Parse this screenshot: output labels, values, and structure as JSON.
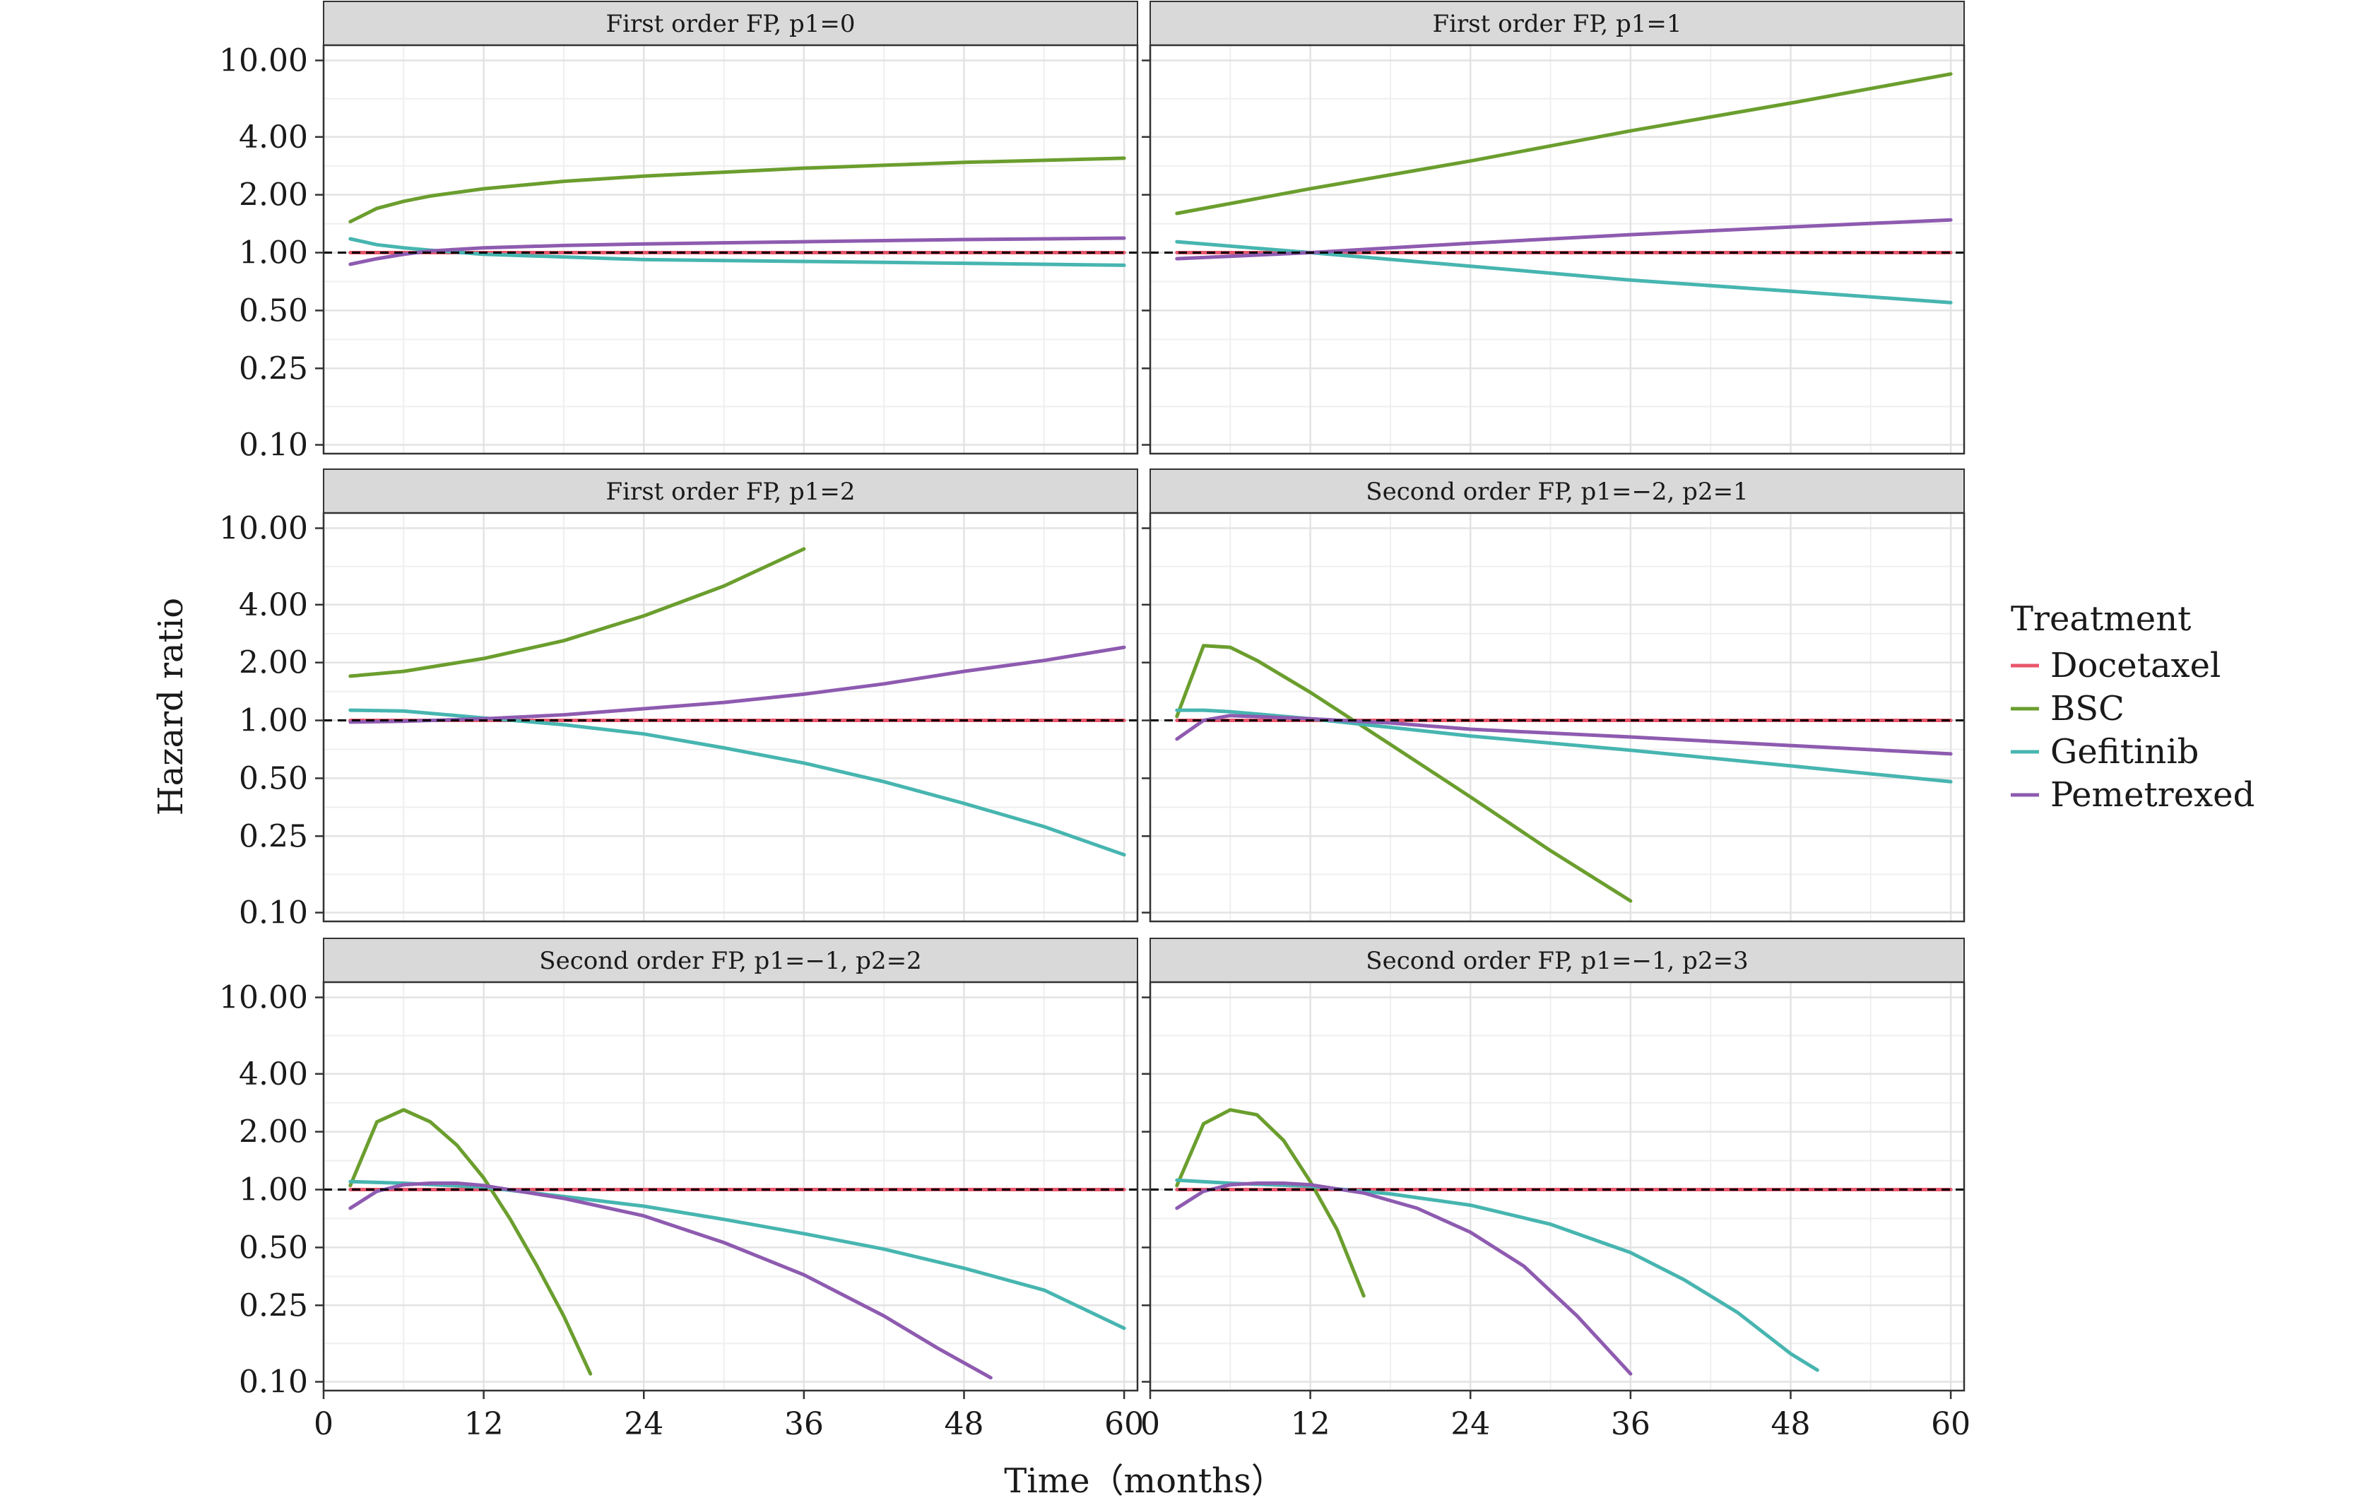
{
  "chart_data": {
    "type": "line",
    "layout": "facet-grid-3x2",
    "ylabel": "Hazard ratio",
    "xlabel": "Time（months）",
    "x_ticks": [
      0,
      12,
      24,
      36,
      48,
      60
    ],
    "xlim": [
      0,
      61
    ],
    "y_scale": "log",
    "y_ticks": [
      0.1,
      0.25,
      0.5,
      1.0,
      2.0,
      4.0,
      10.0
    ],
    "y_tick_labels": [
      "0.10",
      "0.25",
      "0.50",
      "1.00",
      "2.00",
      "4.00",
      "10.00"
    ],
    "ylim": [
      0.09,
      12
    ],
    "reference_line": {
      "y": 1,
      "style": "dashed",
      "color": "#000000"
    },
    "grid": true,
    "legend": {
      "title": "Treatment",
      "position": "right",
      "entries": [
        {
          "name": "Docetaxel",
          "color": "#E8566B"
        },
        {
          "name": "BSC",
          "color": "#6B9E2E"
        },
        {
          "name": "Gefitinib",
          "color": "#47B5B0"
        },
        {
          "name": "Pemetrexed",
          "color": "#8E5BB0"
        }
      ]
    },
    "panels": [
      {
        "title": "First order FP, p1=0",
        "series": [
          {
            "name": "Docetaxel",
            "x": [
              2,
              60
            ],
            "y": [
              1,
              1
            ]
          },
          {
            "name": "BSC",
            "x": [
              2,
              4,
              6,
              8,
              12,
              18,
              24,
              36,
              48,
              60
            ],
            "y": [
              1.45,
              1.7,
              1.85,
              1.97,
              2.15,
              2.35,
              2.5,
              2.75,
              2.95,
              3.1
            ]
          },
          {
            "name": "Gefitinib",
            "x": [
              2,
              4,
              6,
              8,
              12,
              18,
              24,
              36,
              48,
              60
            ],
            "y": [
              1.18,
              1.1,
              1.06,
              1.03,
              0.98,
              0.95,
              0.92,
              0.9,
              0.88,
              0.86
            ]
          },
          {
            "name": "Pemetrexed",
            "x": [
              2,
              4,
              6,
              8,
              12,
              18,
              24,
              36,
              48,
              60
            ],
            "y": [
              0.87,
              0.93,
              0.98,
              1.02,
              1.06,
              1.09,
              1.11,
              1.14,
              1.17,
              1.19
            ]
          }
        ]
      },
      {
        "title": "First order FP, p1=1",
        "series": [
          {
            "name": "Docetaxel",
            "x": [
              2,
              60
            ],
            "y": [
              1,
              1
            ]
          },
          {
            "name": "BSC",
            "x": [
              2,
              12,
              24,
              36,
              48,
              60
            ],
            "y": [
              1.6,
              2.15,
              3.0,
              4.3,
              6.0,
              8.5
            ]
          },
          {
            "name": "Gefitinib",
            "x": [
              2,
              12,
              24,
              36,
              48,
              60
            ],
            "y": [
              1.14,
              1.0,
              0.85,
              0.72,
              0.63,
              0.55
            ]
          },
          {
            "name": "Pemetrexed",
            "x": [
              2,
              12,
              24,
              36,
              48,
              60
            ],
            "y": [
              0.93,
              1.0,
              1.12,
              1.24,
              1.36,
              1.48
            ]
          }
        ]
      },
      {
        "title": "First order FP, p1=2",
        "series": [
          {
            "name": "Docetaxel",
            "x": [
              2,
              60
            ],
            "y": [
              1,
              1
            ]
          },
          {
            "name": "BSC",
            "x": [
              2,
              6,
              12,
              18,
              24,
              30,
              36
            ],
            "y": [
              1.7,
              1.8,
              2.1,
              2.6,
              3.5,
              5.0,
              7.8
            ]
          },
          {
            "name": "Gefitinib",
            "x": [
              2,
              6,
              12,
              18,
              24,
              30,
              36,
              42,
              48,
              54,
              60
            ],
            "y": [
              1.13,
              1.12,
              1.03,
              0.95,
              0.85,
              0.72,
              0.6,
              0.48,
              0.37,
              0.28,
              0.2
            ]
          },
          {
            "name": "Pemetrexed",
            "x": [
              2,
              6,
              12,
              18,
              24,
              30,
              36,
              42,
              48,
              54,
              60
            ],
            "y": [
              0.98,
              0.99,
              1.02,
              1.07,
              1.15,
              1.24,
              1.37,
              1.55,
              1.8,
              2.05,
              2.4
            ]
          }
        ]
      },
      {
        "title": "Second order FP, p1=−2, p2=1",
        "series": [
          {
            "name": "Docetaxel",
            "x": [
              2,
              60
            ],
            "y": [
              1,
              1
            ]
          },
          {
            "name": "BSC",
            "x": [
              2,
              4,
              6,
              8,
              12,
              18,
              24,
              30,
              36
            ],
            "y": [
              1.05,
              2.45,
              2.4,
              2.05,
              1.4,
              0.75,
              0.4,
              0.21,
              0.115
            ]
          },
          {
            "name": "Gefitinib",
            "x": [
              2,
              4,
              6,
              12,
              18,
              24,
              36,
              48,
              60
            ],
            "y": [
              1.13,
              1.13,
              1.11,
              1.02,
              0.92,
              0.83,
              0.7,
              0.58,
              0.48
            ]
          },
          {
            "name": "Pemetrexed",
            "x": [
              2,
              4,
              6,
              12,
              18,
              24,
              36,
              48,
              60
            ],
            "y": [
              0.8,
              1.0,
              1.06,
              1.02,
              0.97,
              0.9,
              0.82,
              0.74,
              0.67
            ]
          }
        ]
      },
      {
        "title": "Second order FP, p1=−1, p2=2",
        "series": [
          {
            "name": "Docetaxel",
            "x": [
              2,
              60
            ],
            "y": [
              1,
              1
            ]
          },
          {
            "name": "BSC",
            "x": [
              2,
              4,
              6,
              8,
              10,
              12,
              14,
              16,
              18,
              20
            ],
            "y": [
              1.05,
              2.25,
              2.6,
              2.25,
              1.7,
              1.15,
              0.7,
              0.4,
              0.22,
              0.11
            ]
          },
          {
            "name": "Gefitinib",
            "x": [
              2,
              6,
              12,
              18,
              24,
              30,
              36,
              42,
              48,
              54,
              60
            ],
            "y": [
              1.1,
              1.08,
              1.03,
              0.92,
              0.82,
              0.7,
              0.59,
              0.49,
              0.39,
              0.3,
              0.19
            ]
          },
          {
            "name": "Pemetrexed",
            "x": [
              2,
              4,
              6,
              8,
              10,
              12,
              18,
              24,
              30,
              36,
              42,
              46,
              50
            ],
            "y": [
              0.8,
              0.98,
              1.06,
              1.08,
              1.08,
              1.05,
              0.9,
              0.73,
              0.53,
              0.36,
              0.22,
              0.15,
              0.105
            ]
          }
        ]
      },
      {
        "title": "Second order FP, p1=−1, p2=3",
        "series": [
          {
            "name": "Docetaxel",
            "x": [
              2,
              60
            ],
            "y": [
              1,
              1
            ]
          },
          {
            "name": "BSC",
            "x": [
              2,
              4,
              6,
              8,
              10,
              12,
              14,
              16
            ],
            "y": [
              1.05,
              2.2,
              2.6,
              2.45,
              1.8,
              1.1,
              0.62,
              0.28
            ]
          },
          {
            "name": "Gefitinib",
            "x": [
              2,
              6,
              12,
              18,
              24,
              30,
              36,
              40,
              44,
              48,
              50
            ],
            "y": [
              1.12,
              1.08,
              1.04,
              0.95,
              0.83,
              0.66,
              0.47,
              0.34,
              0.23,
              0.14,
              0.115
            ]
          },
          {
            "name": "Pemetrexed",
            "x": [
              2,
              4,
              6,
              8,
              10,
              12,
              16,
              20,
              24,
              28,
              32,
              36
            ],
            "y": [
              0.8,
              0.98,
              1.06,
              1.08,
              1.08,
              1.06,
              0.96,
              0.8,
              0.6,
              0.4,
              0.22,
              0.11
            ]
          }
        ]
      }
    ]
  }
}
